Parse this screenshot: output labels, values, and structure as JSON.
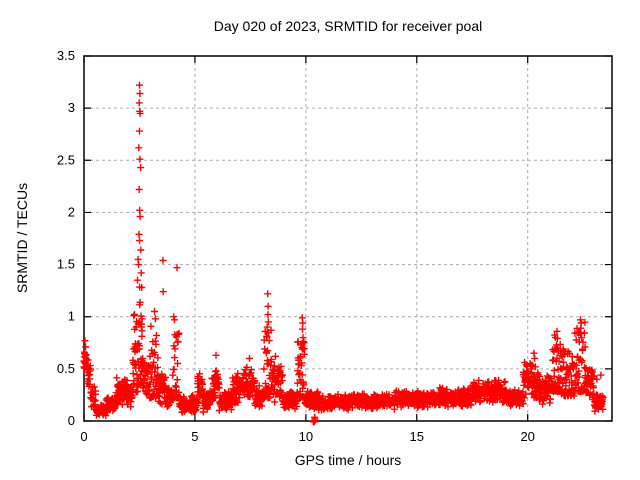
{
  "figure": {
    "background": "#ffffff",
    "text_color": "#000000"
  },
  "chart_data": {
    "type": "scatter",
    "title": "Day 020 of 2023, SRMTID for receiver poal",
    "xlabel": "GPS time / hours",
    "ylabel": "SRMTID / TECUs",
    "xlim": [
      0,
      23.8
    ],
    "ylim": [
      0,
      3.5
    ],
    "xticks": [
      0,
      5,
      10,
      15,
      20
    ],
    "xtick_labels": [
      "0",
      "5",
      "10",
      "15",
      "20"
    ],
    "yticks": [
      0,
      0.5,
      1,
      1.5,
      2,
      2.5,
      3,
      3.5
    ],
    "ytick_labels": [
      "0",
      "0.5",
      "1",
      "1.5",
      "2",
      "2.5",
      "3",
      "3.5"
    ],
    "grid": true,
    "grid_color": "#aaaaaa",
    "border_color": "#000000",
    "legend": "none",
    "marker": {
      "shape": "plus",
      "color": "#ff0000",
      "size": 7
    },
    "series": [
      {
        "name": "SRMTID",
        "peak_points": [
          [
            0.0,
            0.57
          ],
          [
            0.0,
            0.52
          ],
          [
            0.02,
            0.66
          ],
          [
            0.04,
            0.77
          ],
          [
            0.07,
            0.71
          ],
          [
            2.5,
            3.22
          ],
          [
            2.52,
            3.14
          ],
          [
            2.49,
            3.05
          ],
          [
            2.51,
            2.97
          ],
          [
            2.53,
            2.95
          ],
          [
            2.5,
            2.78
          ],
          [
            2.47,
            2.62
          ],
          [
            2.52,
            2.51
          ],
          [
            2.55,
            2.43
          ],
          [
            2.49,
            2.22
          ],
          [
            2.51,
            2.02
          ],
          [
            2.53,
            1.96
          ],
          [
            2.48,
            1.79
          ],
          [
            2.5,
            1.73
          ],
          [
            2.56,
            1.64
          ],
          [
            2.44,
            1.55
          ],
          [
            2.46,
            1.5
          ],
          [
            2.58,
            1.42
          ],
          [
            2.41,
            1.35
          ],
          [
            2.6,
            1.28
          ],
          [
            3.18,
            1.05
          ],
          [
            3.22,
            0.98
          ],
          [
            3.56,
            1.54
          ],
          [
            3.57,
            1.24
          ],
          [
            4.19,
            1.47
          ],
          [
            4.05,
            1.0
          ],
          [
            4.08,
            0.97
          ],
          [
            5.95,
            0.63
          ],
          [
            7.46,
            0.6
          ],
          [
            8.28,
            1.22
          ],
          [
            8.3,
            1.1
          ],
          [
            8.29,
            1.02
          ],
          [
            8.31,
            0.95
          ],
          [
            8.26,
            0.9
          ],
          [
            8.32,
            0.85
          ],
          [
            8.63,
            0.62
          ],
          [
            9.84,
            0.99
          ],
          [
            9.86,
            0.94
          ],
          [
            9.85,
            0.88
          ],
          [
            9.87,
            0.8
          ],
          [
            9.83,
            0.74
          ],
          [
            20.28,
            0.65
          ],
          [
            20.31,
            0.6
          ],
          [
            21.32,
            0.86
          ],
          [
            21.34,
            0.79
          ],
          [
            21.3,
            0.73
          ],
          [
            22.38,
            0.97
          ],
          [
            22.41,
            0.94
          ],
          [
            22.39,
            0.89
          ],
          [
            22.36,
            0.85
          ],
          [
            22.43,
            0.8
          ],
          [
            23.12,
            0.4
          ],
          [
            23.3,
            0.44
          ]
        ],
        "noise_segments": [
          {
            "x0": 0.0,
            "x1": 0.1,
            "ymin": 0.48,
            "ymax": 0.68,
            "n": 12
          },
          {
            "x0": 0.1,
            "x1": 0.3,
            "ymin": 0.32,
            "ymax": 0.62,
            "n": 20
          },
          {
            "x0": 0.3,
            "x1": 0.55,
            "ymin": 0.1,
            "ymax": 0.38,
            "n": 24
          },
          {
            "x0": 0.55,
            "x1": 1.0,
            "ymin": 0.04,
            "ymax": 0.16,
            "n": 45
          },
          {
            "x0": 1.0,
            "x1": 1.45,
            "ymin": 0.08,
            "ymax": 0.26,
            "n": 45
          },
          {
            "x0": 1.45,
            "x1": 1.95,
            "ymin": 0.14,
            "ymax": 0.45,
            "n": 50
          },
          {
            "x0": 1.95,
            "x1": 2.2,
            "ymin": 0.12,
            "ymax": 0.35,
            "n": 25
          },
          {
            "x0": 2.2,
            "x1": 2.45,
            "ymin": 0.28,
            "ymax": 1.05,
            "n": 35
          },
          {
            "x0": 2.45,
            "x1": 2.65,
            "ymin": 0.35,
            "ymax": 1.3,
            "n": 30
          },
          {
            "x0": 2.65,
            "x1": 2.95,
            "ymin": 0.18,
            "ymax": 0.6,
            "n": 30
          },
          {
            "x0": 2.95,
            "x1": 3.35,
            "ymin": 0.22,
            "ymax": 1.0,
            "n": 40
          },
          {
            "x0": 3.35,
            "x1": 3.7,
            "ymin": 0.14,
            "ymax": 0.55,
            "n": 35
          },
          {
            "x0": 3.7,
            "x1": 4.0,
            "ymin": 0.1,
            "ymax": 0.35,
            "n": 30
          },
          {
            "x0": 4.0,
            "x1": 4.3,
            "ymin": 0.22,
            "ymax": 0.85,
            "n": 30
          },
          {
            "x0": 4.3,
            "x1": 5.1,
            "ymin": 0.06,
            "ymax": 0.25,
            "n": 80
          },
          {
            "x0": 5.1,
            "x1": 5.35,
            "ymin": 0.14,
            "ymax": 0.48,
            "n": 25
          },
          {
            "x0": 5.35,
            "x1": 5.75,
            "ymin": 0.08,
            "ymax": 0.3,
            "n": 40
          },
          {
            "x0": 5.75,
            "x1": 6.1,
            "ymin": 0.16,
            "ymax": 0.58,
            "n": 35
          },
          {
            "x0": 6.1,
            "x1": 6.7,
            "ymin": 0.08,
            "ymax": 0.3,
            "n": 60
          },
          {
            "x0": 6.7,
            "x1": 7.2,
            "ymin": 0.14,
            "ymax": 0.5,
            "n": 50
          },
          {
            "x0": 7.2,
            "x1": 7.7,
            "ymin": 0.16,
            "ymax": 0.56,
            "n": 50
          },
          {
            "x0": 7.7,
            "x1": 8.1,
            "ymin": 0.12,
            "ymax": 0.35,
            "n": 40
          },
          {
            "x0": 8.1,
            "x1": 8.45,
            "ymin": 0.22,
            "ymax": 0.88,
            "n": 40
          },
          {
            "x0": 8.45,
            "x1": 8.95,
            "ymin": 0.18,
            "ymax": 0.58,
            "n": 50
          },
          {
            "x0": 8.95,
            "x1": 9.6,
            "ymin": 0.1,
            "ymax": 0.3,
            "n": 65
          },
          {
            "x0": 9.6,
            "x1": 9.95,
            "ymin": 0.22,
            "ymax": 0.78,
            "n": 40
          },
          {
            "x0": 9.95,
            "x1": 10.55,
            "ymin": 0.1,
            "ymax": 0.3,
            "n": 55
          },
          {
            "x0": 10.33,
            "x1": 10.42,
            "ymin": -0.02,
            "ymax": 0.04,
            "n": 10
          },
          {
            "x0": 10.55,
            "x1": 12.0,
            "ymin": 0.1,
            "ymax": 0.26,
            "n": 150
          },
          {
            "x0": 12.0,
            "x1": 14.0,
            "ymin": 0.11,
            "ymax": 0.27,
            "n": 200
          },
          {
            "x0": 14.0,
            "x1": 16.0,
            "ymin": 0.12,
            "ymax": 0.3,
            "n": 200
          },
          {
            "x0": 16.0,
            "x1": 17.5,
            "ymin": 0.13,
            "ymax": 0.33,
            "n": 150
          },
          {
            "x0": 17.5,
            "x1": 19.0,
            "ymin": 0.16,
            "ymax": 0.4,
            "n": 150
          },
          {
            "x0": 19.0,
            "x1": 19.8,
            "ymin": 0.12,
            "ymax": 0.33,
            "n": 80
          },
          {
            "x0": 19.8,
            "x1": 20.5,
            "ymin": 0.18,
            "ymax": 0.6,
            "n": 70
          },
          {
            "x0": 20.5,
            "x1": 21.1,
            "ymin": 0.15,
            "ymax": 0.45,
            "n": 60
          },
          {
            "x0": 21.1,
            "x1": 21.5,
            "ymin": 0.28,
            "ymax": 0.85,
            "n": 45
          },
          {
            "x0": 21.5,
            "x1": 22.1,
            "ymin": 0.24,
            "ymax": 0.7,
            "n": 60
          },
          {
            "x0": 22.1,
            "x1": 22.6,
            "ymin": 0.28,
            "ymax": 0.95,
            "n": 55
          },
          {
            "x0": 22.6,
            "x1": 23.0,
            "ymin": 0.18,
            "ymax": 0.55,
            "n": 40
          },
          {
            "x0": 23.0,
            "x1": 23.4,
            "ymin": 0.08,
            "ymax": 0.3,
            "n": 45
          }
        ]
      }
    ]
  }
}
